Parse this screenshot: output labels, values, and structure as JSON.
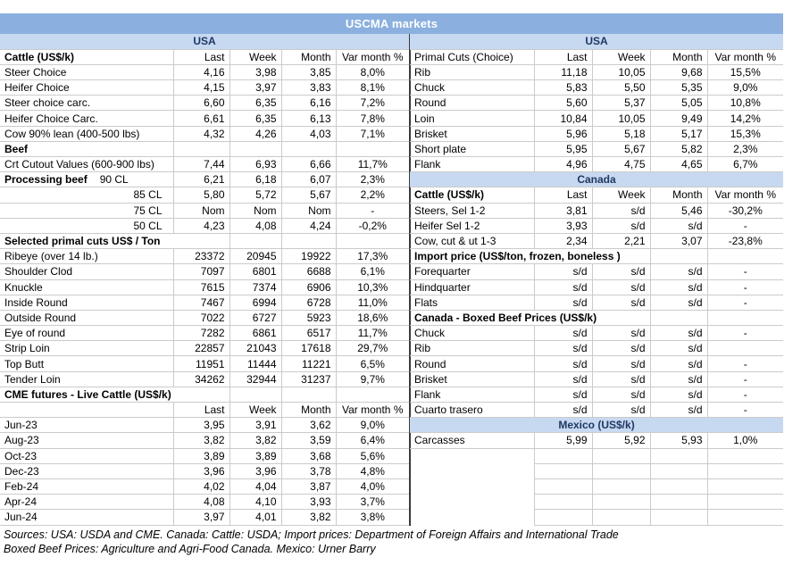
{
  "title": "USCMA markets",
  "columns": [
    "Last",
    "Week",
    "Month",
    "Var month %"
  ],
  "colors": {
    "title_bg": "#8BB0DF",
    "title_text": "#FFFFFF",
    "band_bg": "#C7D9F0",
    "band_text": "#1F3864",
    "grid": "#CBCBCB",
    "divider": "#3A3A3A"
  },
  "tables": {
    "left": {
      "rows": [
        {
          "type": "band",
          "label": "USA"
        },
        {
          "type": "header",
          "label": "Cattle (US$/k)",
          "bold": true
        },
        {
          "type": "data",
          "label": "Steer Choice",
          "values": [
            "4,16",
            "3,98",
            "3,85",
            "8,0%"
          ]
        },
        {
          "type": "data",
          "label": "Heifer Choice",
          "values": [
            "4,15",
            "3,97",
            "3,83",
            "8,1%"
          ]
        },
        {
          "type": "data",
          "label": "Steer choice carc.",
          "values": [
            "6,60",
            "6,35",
            "6,16",
            "7,2%"
          ]
        },
        {
          "type": "data",
          "label": "Heifer Choice Carc.",
          "values": [
            "6,61",
            "6,35",
            "6,13",
            "7,8%"
          ]
        },
        {
          "type": "data",
          "label": "Cow 90% lean (400-500 lbs)",
          "values": [
            "4,32",
            "4,26",
            "4,03",
            "7,1%"
          ]
        },
        {
          "type": "data",
          "label": "Beef",
          "bold": true,
          "values": [
            "",
            "",
            "",
            ""
          ]
        },
        {
          "type": "data",
          "label": "Crt Cutout Values (600-900 lbs)",
          "values": [
            "7,44",
            "6,93",
            "6,66",
            "11,7%"
          ]
        },
        {
          "type": "data",
          "label": "Processing beef",
          "label2": "90 CL",
          "bold": true,
          "values": [
            "6,21",
            "6,18",
            "6,07",
            "2,3%"
          ]
        },
        {
          "type": "data",
          "label": "85 CL",
          "labelAlign": "right",
          "values": [
            "5,80",
            "5,72",
            "5,67",
            "2,2%"
          ]
        },
        {
          "type": "data",
          "label": "75 CL",
          "labelAlign": "right",
          "values": [
            "Nom",
            "Nom",
            "Nom",
            "-"
          ]
        },
        {
          "type": "data",
          "label": "50 CL",
          "labelAlign": "right",
          "values": [
            "4,23",
            "4,08",
            "4,24",
            "-0,2%"
          ]
        },
        {
          "type": "section",
          "label": "Selected primal cuts US$ / Ton",
          "span": 2
        },
        {
          "type": "data",
          "label": "Ribeye (over 14 lb.)",
          "values": [
            "23372",
            "20945",
            "19922",
            "17,3%"
          ]
        },
        {
          "type": "data",
          "label": "Shoulder Clod",
          "values": [
            "7097",
            "6801",
            "6688",
            "6,1%"
          ]
        },
        {
          "type": "data",
          "label": "Knuckle",
          "values": [
            "7615",
            "7374",
            "6906",
            "10,3%"
          ]
        },
        {
          "type": "data",
          "label": "Inside Round",
          "values": [
            "7467",
            "6994",
            "6728",
            "11,0%"
          ]
        },
        {
          "type": "data",
          "label": "Outside Round",
          "values": [
            "7022",
            "6727",
            "5923",
            "18,6%"
          ]
        },
        {
          "type": "data",
          "label": "Eye of round",
          "values": [
            "7282",
            "6861",
            "6517",
            "11,7%"
          ]
        },
        {
          "type": "data",
          "label": "Strip Loin",
          "values": [
            "22857",
            "21043",
            "17618",
            "29,7%"
          ]
        },
        {
          "type": "data",
          "label": "Top Butt",
          "values": [
            "11951",
            "11444",
            "11221",
            "6,5%"
          ]
        },
        {
          "type": "data",
          "label": "Tender Loin",
          "values": [
            "34262",
            "32944",
            "31237",
            "9,7%"
          ]
        },
        {
          "type": "section",
          "label": "CME futures - Live Cattle (US$/k)",
          "span": 2
        },
        {
          "type": "header",
          "label": "",
          "bold": false
        },
        {
          "type": "data",
          "label": "Jun-23",
          "values": [
            "3,95",
            "3,91",
            "3,62",
            "9,0%"
          ]
        },
        {
          "type": "data",
          "label": "Aug-23",
          "values": [
            "3,82",
            "3,82",
            "3,59",
            "6,4%"
          ]
        },
        {
          "type": "data",
          "label": "Oct-23",
          "values": [
            "3,89",
            "3,89",
            "3,68",
            "5,6%"
          ]
        },
        {
          "type": "data",
          "label": "Dec-23",
          "values": [
            "3,96",
            "3,96",
            "3,78",
            "4,8%"
          ]
        },
        {
          "type": "data",
          "label": "Feb-24",
          "values": [
            "4,02",
            "4,04",
            "3,87",
            "4,0%"
          ]
        },
        {
          "type": "data",
          "label": "Apr-24",
          "values": [
            "4,08",
            "4,10",
            "3,93",
            "3,7%"
          ]
        },
        {
          "type": "data",
          "label": "Jun-24",
          "values": [
            "3,97",
            "4,01",
            "3,82",
            "3,8%"
          ]
        }
      ]
    },
    "right": {
      "rows": [
        {
          "type": "band",
          "label": "USA"
        },
        {
          "type": "header",
          "label": "Primal Cuts (Choice)",
          "bold": false
        },
        {
          "type": "data",
          "label": "Rib",
          "values": [
            "11,18",
            "10,05",
            "9,68",
            "15,5%"
          ]
        },
        {
          "type": "data",
          "label": "Chuck",
          "values": [
            "5,83",
            "5,50",
            "5,35",
            "9,0%"
          ]
        },
        {
          "type": "data",
          "label": "Round",
          "values": [
            "5,60",
            "5,37",
            "5,05",
            "10,8%"
          ]
        },
        {
          "type": "data",
          "label": "Loin",
          "values": [
            "10,84",
            "10,05",
            "9,49",
            "14,2%"
          ]
        },
        {
          "type": "data",
          "label": "Brisket",
          "values": [
            "5,96",
            "5,18",
            "5,17",
            "15,3%"
          ]
        },
        {
          "type": "data",
          "label": "Short plate",
          "values": [
            "5,95",
            "5,67",
            "5,82",
            "2,3%"
          ]
        },
        {
          "type": "data",
          "label": "Flank",
          "values": [
            "4,96",
            "4,75",
            "4,65",
            "6,7%"
          ]
        },
        {
          "type": "band",
          "label": "Canada"
        },
        {
          "type": "header",
          "label": "Cattle (US$/k)",
          "bold": true
        },
        {
          "type": "data",
          "label": "Steers, Sel 1-2",
          "values": [
            "3,81",
            "s/d",
            "5,46",
            "-30,2%"
          ]
        },
        {
          "type": "data",
          "label": "Heifer Sel 1-2",
          "values": [
            "3,93",
            "s/d",
            "s/d",
            "-"
          ]
        },
        {
          "type": "data",
          "label": "Cow, cut & ut 1-3",
          "values": [
            "2,34",
            "2,21",
            "3,07",
            "-23,8%"
          ]
        },
        {
          "type": "section",
          "label": "Import price (US$/ton, frozen, boneless )",
          "span": 3
        },
        {
          "type": "data",
          "label": "Forequarter",
          "values": [
            "s/d",
            "s/d",
            "s/d",
            "-"
          ]
        },
        {
          "type": "data",
          "label": "Hindquarter",
          "values": [
            "s/d",
            "s/d",
            "s/d",
            "-"
          ]
        },
        {
          "type": "data",
          "label": "Flats",
          "values": [
            "s/d",
            "s/d",
            "s/d",
            "-"
          ]
        },
        {
          "type": "section",
          "label": "Canada - Boxed Beef Prices (US$/k)",
          "span": 3
        },
        {
          "type": "data",
          "label": "Chuck",
          "values": [
            "s/d",
            "s/d",
            "s/d",
            "-"
          ]
        },
        {
          "type": "data",
          "label": "Rib",
          "values": [
            "s/d",
            "s/d",
            "s/d",
            ""
          ]
        },
        {
          "type": "data",
          "label": "Round",
          "values": [
            "s/d",
            "s/d",
            "s/d",
            "-"
          ]
        },
        {
          "type": "data",
          "label": "Brisket",
          "values": [
            "s/d",
            "s/d",
            "s/d",
            "-"
          ]
        },
        {
          "type": "data",
          "label": "Flank",
          "values": [
            "s/d",
            "s/d",
            "s/d",
            "-"
          ]
        },
        {
          "type": "data",
          "label": "Cuarto trasero",
          "values": [
            "s/d",
            "s/d",
            "s/d",
            "-"
          ]
        },
        {
          "type": "band",
          "label": "Mexico (US$/k)"
        },
        {
          "type": "data",
          "label": "Carcasses",
          "values": [
            "5,99",
            "5,92",
            "5,93",
            "1,0%"
          ]
        },
        {
          "type": "empty"
        },
        {
          "type": "empty"
        },
        {
          "type": "empty"
        },
        {
          "type": "empty"
        },
        {
          "type": "empty"
        }
      ]
    }
  },
  "footer": {
    "line1": "Sources: USA: USDA and CME. Canada: Cattle: USDA; Import prices: Department of Foreign Affairs and International Trade",
    "line2": "Boxed Beef Prices: Agriculture and Agri-Food Canada. Mexico: Urner Barry"
  }
}
